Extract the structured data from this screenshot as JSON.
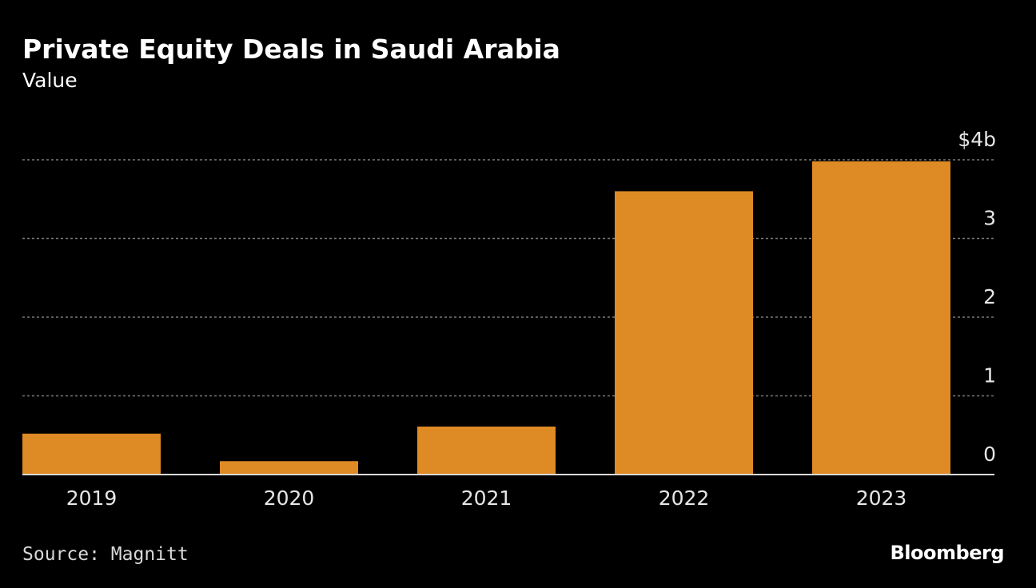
{
  "header": {
    "title": "Private Equity Deals in Saudi Arabia",
    "subtitle": "Value"
  },
  "footer": {
    "source": "Source: Magnitt",
    "brand": "Bloomberg"
  },
  "colors": {
    "background": "#000000",
    "bar": "#de8a25",
    "grid": "#7a7a7a",
    "axis_text": "#e6e6e6"
  },
  "chart_data": {
    "type": "bar",
    "title": "Private Equity Deals in Saudi Arabia",
    "subtitle": "Value",
    "xlabel": "",
    "ylabel": "",
    "categories": [
      "2019",
      "2020",
      "2021",
      "2022",
      "2023"
    ],
    "values": [
      0.52,
      0.17,
      0.61,
      3.6,
      3.98
    ],
    "ylim": [
      0,
      4
    ],
    "yticks": [
      0,
      1,
      2,
      3,
      4
    ],
    "ytick_labels": [
      "0",
      "1",
      "2",
      "3",
      "$4b"
    ],
    "grid": true,
    "y_axis_side": "right"
  }
}
